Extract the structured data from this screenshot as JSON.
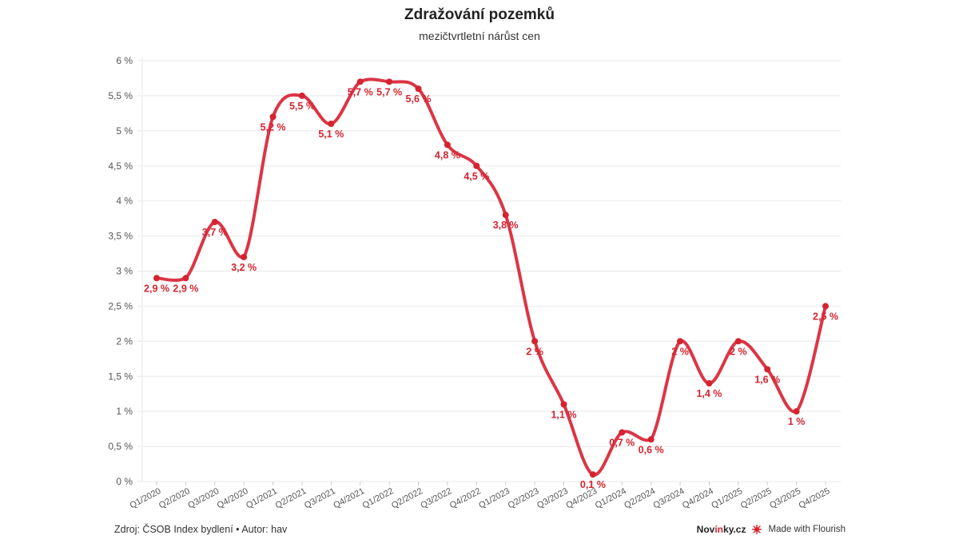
{
  "header": {
    "title": "Zdražování pozemků",
    "subtitle": "mezičtvrtletní nárůst cen"
  },
  "footer": {
    "source": "Zdroj: ČSOB Index bydlení • Autor: hav",
    "brand_prefix": "Nov",
    "brand_accent": "in",
    "brand_suffix": "ky.cz",
    "flourish_label": "Made with Flourish",
    "flourish_icon": "flourish-burst-icon"
  },
  "colors": {
    "line": "#dc3545",
    "marker": "#d5232f",
    "label": "#d5232f",
    "grid": "#e8e8e8",
    "axis_text": "#555555"
  },
  "chart_data": {
    "type": "line",
    "title": "Zdražování pozemků",
    "subtitle": "mezičtvrtletní nárůst cen",
    "xlabel": "",
    "ylabel": "",
    "ylim": [
      0,
      6
    ],
    "yticks": [
      "0 %",
      "0,5 %",
      "1 %",
      "1,5 %",
      "2 %",
      "2,5 %",
      "3 %",
      "3,5 %",
      "4 %",
      "4,5 %",
      "5 %",
      "5,5 %",
      "6 %"
    ],
    "grid": true,
    "legend": "none",
    "categories": [
      "Q1/2020",
      "Q2/2020",
      "Q3/2020",
      "Q4/2020",
      "Q1/2021",
      "Q2/2021",
      "Q3/2021",
      "Q4/2021",
      "Q1/2022",
      "Q2/2022",
      "Q3/2022",
      "Q4/2022",
      "Q1/2023",
      "Q2/2023",
      "Q3/2023",
      "Q4/2023",
      "Q1/2024",
      "Q2/2024",
      "Q3/2024",
      "Q4/2024",
      "Q1/2025",
      "Q2/2025",
      "Q3/2025",
      "Q4/2025"
    ],
    "series": [
      {
        "name": "mezičtvrtletní nárůst cen",
        "values": [
          2.9,
          2.9,
          3.7,
          3.2,
          5.2,
          5.5,
          5.1,
          5.7,
          5.7,
          5.6,
          4.8,
          4.5,
          3.8,
          2.0,
          1.1,
          0.1,
          0.7,
          0.6,
          2.0,
          1.4,
          2.0,
          1.6,
          1.0,
          2.5
        ],
        "labels": [
          "2,9 %",
          "2,9 %",
          "3,7 %",
          "3,2 %",
          "5,2 %",
          "5,5 %",
          "5,1 %",
          "5,7 %",
          "5,7 %",
          "5,6 %",
          "4,8 %",
          "4,5 %",
          "3,8 %",
          "2 %",
          "1,1 %",
          "0,1 %",
          "0,7 %",
          "0,6 %",
          "2 %",
          "1,4 %",
          "2 %",
          "1,6 %",
          "1 %",
          "2,5 %"
        ]
      }
    ],
    "source": "Zdroj: ČSOB Index bydlení • Autor: hav"
  }
}
